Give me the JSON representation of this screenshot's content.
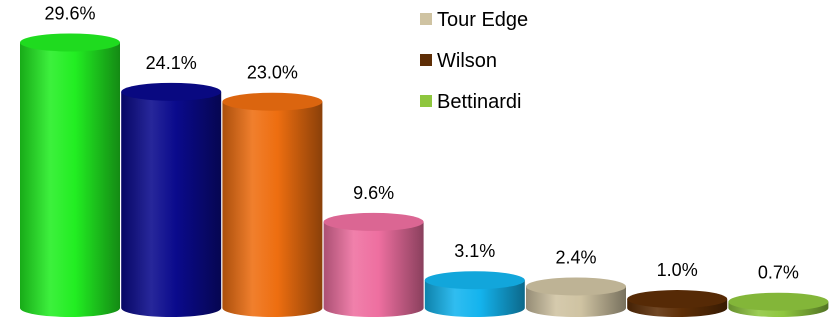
{
  "chart_data": {
    "type": "bar",
    "style": "3d-cylinder",
    "ylim": [
      0,
      30
    ],
    "series": [
      {
        "values": [
          29.6,
          24.1,
          23.0,
          9.6,
          3.1,
          2.4,
          1.0,
          0.7
        ],
        "labels": [
          "29.6%",
          "24.1%",
          "23.0%",
          "9.6%",
          "3.1%",
          "2.4%",
          "1.0%",
          "0.7%"
        ],
        "colors": [
          "#22ee22",
          "#0a0a8c",
          "#ee6e10",
          "#ee6fa0",
          "#14b4ee",
          "#cfc3a2",
          "#5e2e06",
          "#8ec63e"
        ]
      }
    ],
    "legend": {
      "position": "top-right",
      "entries": [
        {
          "name": "Tour Edge",
          "color": "#cfc3a2"
        },
        {
          "name": "Wilson",
          "color": "#5e2e06"
        },
        {
          "name": "Bettinardi",
          "color": "#8ec63e"
        }
      ]
    }
  }
}
